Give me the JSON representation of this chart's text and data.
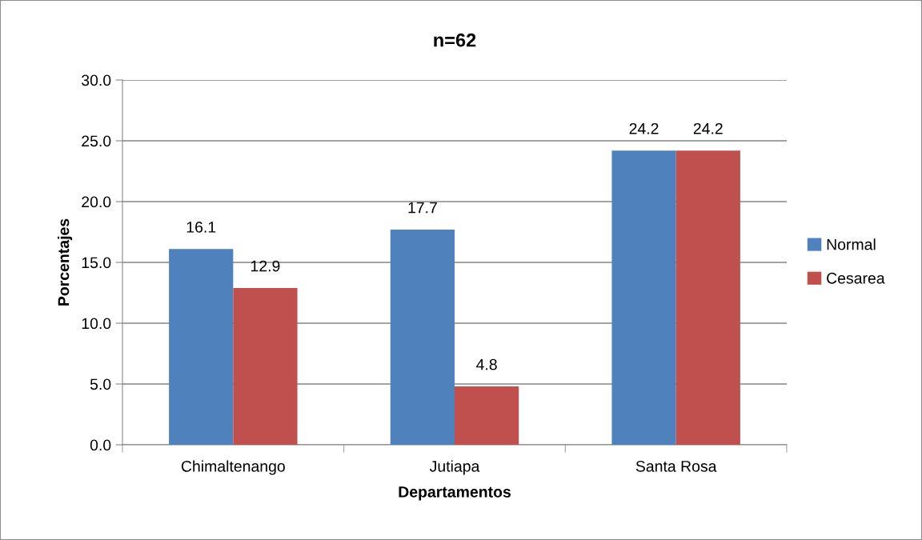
{
  "chart_data": {
    "type": "bar",
    "title": "n=62",
    "xlabel": "Departamentos",
    "ylabel": "Porcentajes",
    "categories": [
      "Chimaltenango",
      "Jutiapa",
      "Santa Rosa"
    ],
    "series": [
      {
        "name": "Normal",
        "color": "#4f81bd",
        "values": [
          16.1,
          17.7,
          24.2
        ]
      },
      {
        "name": "Cesarea",
        "color": "#c0504d",
        "values": [
          12.9,
          4.8,
          24.2
        ]
      }
    ],
    "ylim": [
      0,
      30
    ],
    "yticks": [
      {
        "value": 0,
        "label": "0.0"
      },
      {
        "value": 5,
        "label": "5.0"
      },
      {
        "value": 10,
        "label": "10.0"
      },
      {
        "value": 15,
        "label": "15.0"
      },
      {
        "value": 20,
        "label": "20.0"
      },
      {
        "value": 25,
        "label": "25.0"
      },
      {
        "value": 30,
        "label": "30.0"
      }
    ],
    "grid": "y",
    "legend": "right",
    "data_labels": true
  }
}
